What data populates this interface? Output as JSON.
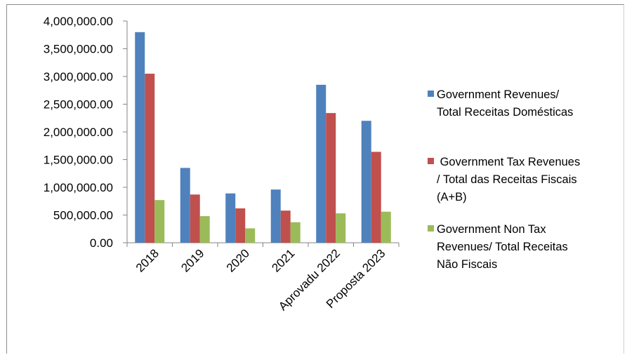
{
  "chart_data": {
    "type": "bar",
    "title": "",
    "xlabel": "",
    "ylabel": "",
    "ylim": [
      0,
      4000000
    ],
    "y_ticks": [
      "4,000,000.00",
      "3,500,000.00",
      "3,000,000.00",
      "2,500,000.00",
      "2,000,000.00",
      "1,500,000.00",
      "1,000,000.00",
      "500,000.00",
      "0.00"
    ],
    "grid": false,
    "legend_position": "right",
    "categories": [
      "2018",
      "2019",
      "2020",
      "2021",
      "Aprovadu 2022",
      "Proposta 2023"
    ],
    "series": [
      {
        "name": "Government Revenues/ Total Receitas Domésticas",
        "legend_lines": [
          "Government Revenues/",
          "Total Receitas Domésticas"
        ],
        "color": "#4f81bd",
        "values": [
          3800000,
          1350000,
          890000,
          960000,
          2850000,
          2200000
        ]
      },
      {
        "name": " Government Tax Revenues / Total das Receitas Fiscais (A+B)",
        "legend_lines": [
          " Government Tax Revenues",
          "/ Total das Receitas Fiscais",
          "(A+B)"
        ],
        "color": "#c0504d",
        "values": [
          3050000,
          870000,
          620000,
          580000,
          2340000,
          1640000
        ]
      },
      {
        "name": "Government Non Tax Revenues/ Total Receitas Não Fiscais",
        "legend_lines": [
          "Government Non Tax",
          "Revenues/ Total Receitas",
          "Não Fiscais"
        ],
        "color": "#9bbb59",
        "values": [
          770000,
          480000,
          260000,
          370000,
          530000,
          560000
        ]
      }
    ]
  }
}
